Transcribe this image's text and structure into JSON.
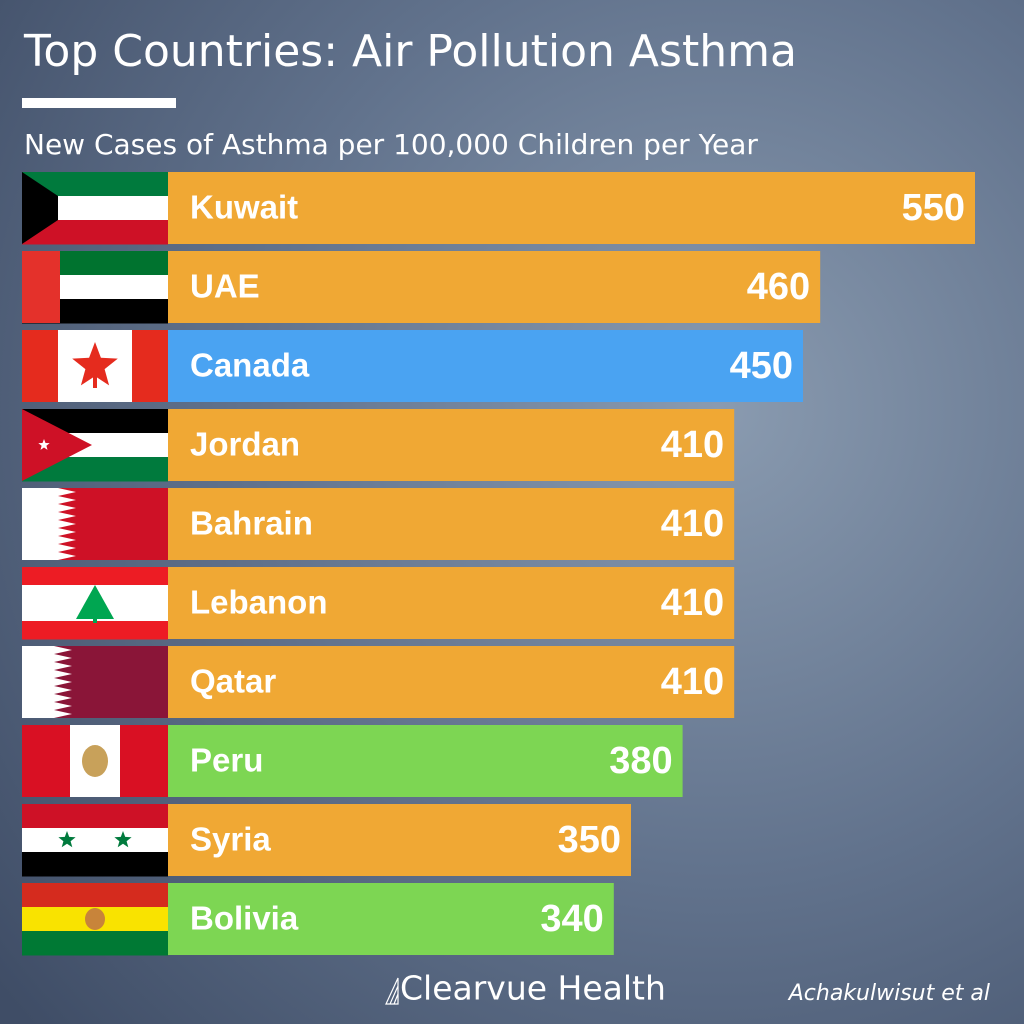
{
  "chart_data": {
    "type": "bar",
    "orientation": "horizontal",
    "title": "Top Countries: Air Pollution Asthma",
    "subtitle": "New Cases of Asthma per 100,000 Children per Year",
    "categories": [
      "Kuwait",
      "UAE",
      "Canada",
      "Jordan",
      "Bahrain",
      "Lebanon",
      "Qatar",
      "Peru",
      "Syria",
      "Bolivia"
    ],
    "values": [
      550,
      460,
      450,
      410,
      410,
      410,
      410,
      380,
      350,
      340
    ],
    "colors": [
      "#f0a834",
      "#f0a834",
      "#4aa3f2",
      "#f0a834",
      "#f0a834",
      "#f0a834",
      "#f0a834",
      "#7dd653",
      "#f0a834",
      "#7dd653"
    ],
    "brand": "Clearvue Health",
    "source": "Achakulwisut et al"
  }
}
